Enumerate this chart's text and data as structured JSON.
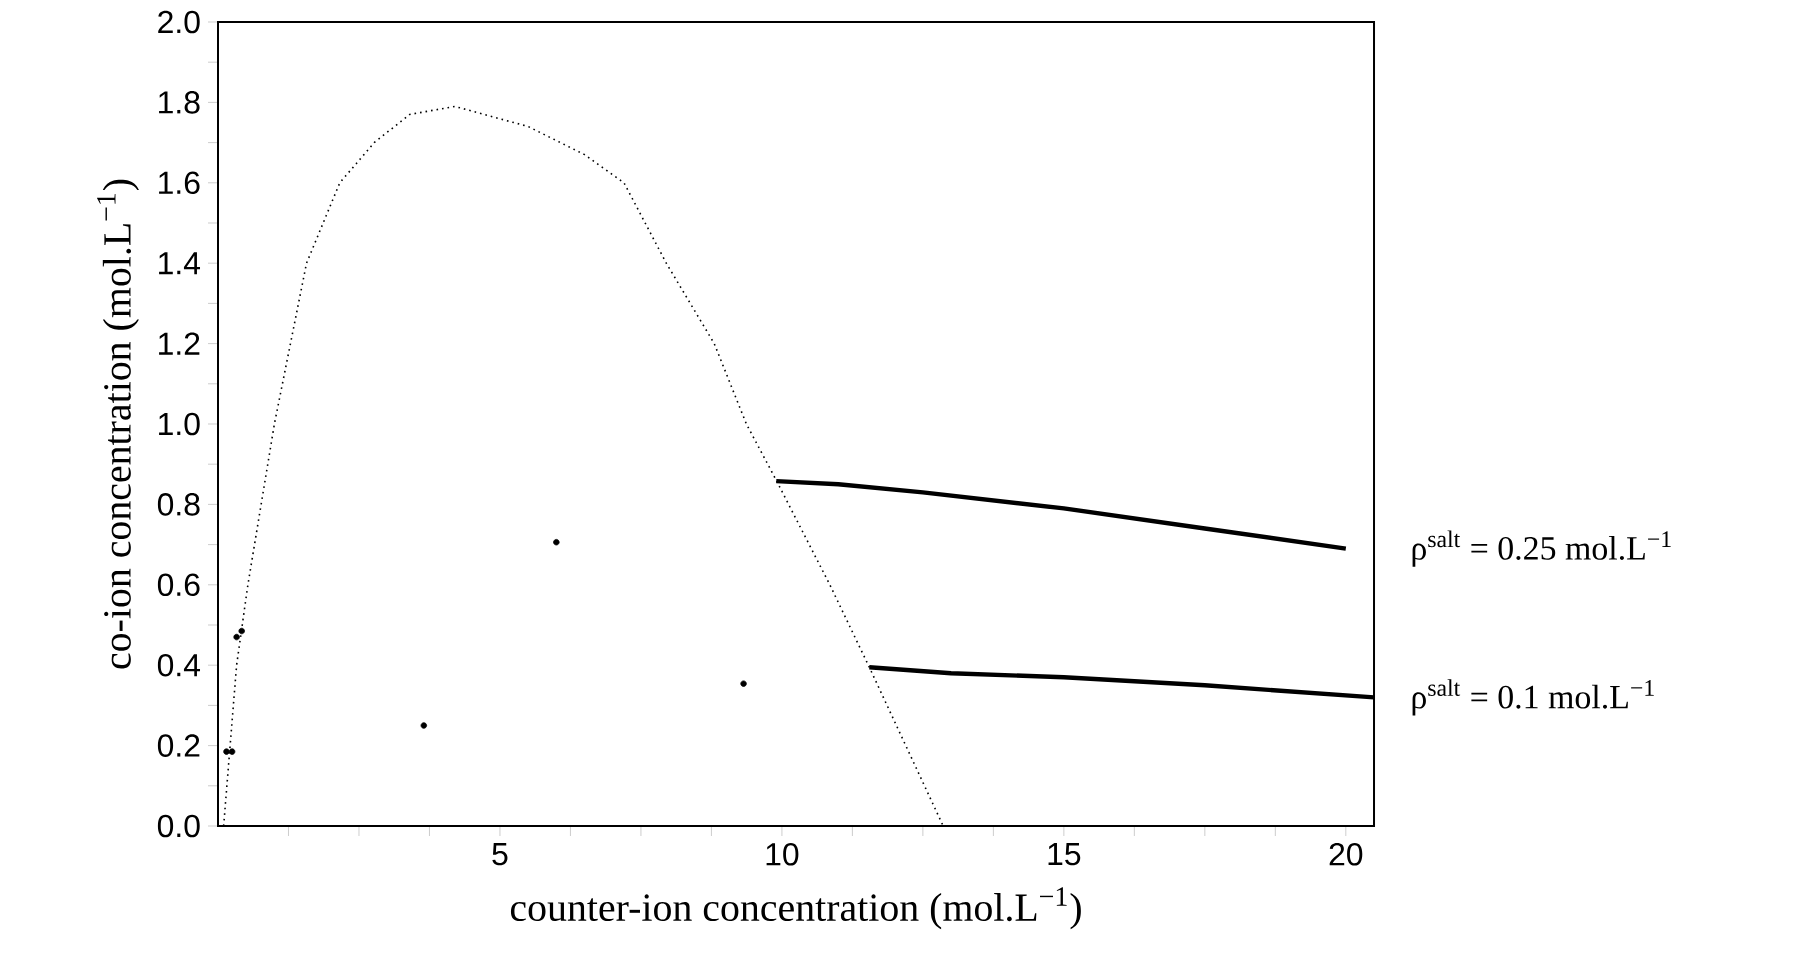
{
  "chart_data": {
    "type": "line",
    "xlabel": "counter-ion concentration (mol.L$^{−1}$)",
    "ylabel": "co-ion concentration (mol.L$^{−1}$)",
    "xlim": [
      0,
      20.5
    ],
    "ylim": [
      0,
      2.0
    ],
    "xticks": [
      {
        "value": 1.25,
        "label": null
      },
      {
        "value": 2.5,
        "label": null
      },
      {
        "value": 3.75,
        "label": null
      },
      5,
      {
        "value": 6.25,
        "label": null
      },
      {
        "value": 7.5,
        "label": null
      },
      {
        "value": 8.75,
        "label": null
      },
      10,
      {
        "value": 11.25,
        "label": null
      },
      {
        "value": 12.5,
        "label": null
      },
      {
        "value": 13.75,
        "label": null
      },
      15,
      {
        "value": 16.25,
        "label": null
      },
      {
        "value": 17.5,
        "label": null
      },
      {
        "value": 18.75,
        "label": null
      },
      20
    ],
    "yticks": [
      {
        "value": 0,
        "label": "0.0"
      },
      {
        "value": 0.1,
        "label": null
      },
      0.2,
      {
        "value": 0.3,
        "label": null
      },
      0.4,
      {
        "value": 0.5,
        "label": null
      },
      0.6,
      {
        "value": 0.7,
        "label": null
      },
      0.8,
      {
        "value": 0.9,
        "label": null
      },
      {
        "value": 1.0,
        "label": "1.0"
      },
      {
        "value": 1.1,
        "label": null
      },
      1.2,
      {
        "value": 1.3,
        "label": null
      },
      1.4,
      {
        "value": 1.5,
        "label": null
      },
      1.6,
      {
        "value": 1.7,
        "label": null
      },
      1.8,
      {
        "value": 1.9,
        "label": null
      },
      {
        "value": 2.0,
        "label": "2.0"
      }
    ],
    "grid": false,
    "series": [
      {
        "line_style": "dotted",
        "marker": "none",
        "color": "#000000",
        "x": [
          0.1,
          0.33,
          0.53,
          1.0,
          1.57,
          2.16,
          2.77,
          3.4,
          4.2,
          5.5,
          6.5,
          7.2,
          7.95,
          8.8,
          9.37,
          9.9,
          10.85,
          11.55,
          12.86
        ],
        "values": [
          0,
          0.4,
          0.6,
          1.0,
          1.4,
          1.6,
          1.7,
          1.77,
          1.79,
          1.74,
          1.67,
          1.6,
          1.4,
          1.2,
          1.0,
          0.86,
          0.6,
          0.395,
          0
        ]
      },
      {
        "type": "line",
        "line_style": "solid",
        "marker": "none",
        "color": "#000000",
        "name": "ρ$^{salt}$ = 0.25 mol.L$^{−1}$",
        "x": [
          9.9,
          11,
          12.5,
          15,
          17.5,
          20
        ],
        "values": [
          0.858,
          0.85,
          0.83,
          0.79,
          0.74,
          0.69
        ]
      },
      {
        "type": "line",
        "line_style": "solid",
        "marker": "none",
        "color": "#000000",
        "name": "ρ$^{salt}$ = 0.1 mol.L$^{−1}$",
        "x": [
          11.55,
          13,
          15,
          17.5,
          20.5
        ],
        "values": [
          0.395,
          0.38,
          0.37,
          0.35,
          0.32
        ]
      },
      {
        "type": "scatter",
        "marker": "circle",
        "color": "#000000",
        "x": [
          0.15,
          0.25,
          0.33,
          0.42,
          3.65,
          6.0,
          9.32
        ],
        "values": [
          0.185,
          0.185,
          0.47,
          0.485,
          0.25,
          0.706,
          0.354
        ]
      }
    ]
  }
}
